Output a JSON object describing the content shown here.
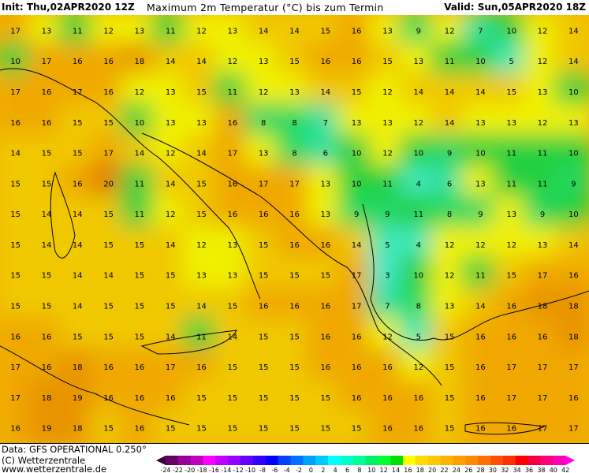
{
  "header": {
    "init": "Init: Thu,02APR2020 12Z",
    "title": "Maximum 2m Temperatur (°C) bis zum Termin",
    "valid": "Valid: Sun,05APR2020 18Z"
  },
  "footer": {
    "data_source": "Data: GFS OPERATIONAL 0.250°",
    "copyright": "(C) Wetterzentrale",
    "website": "www.wetterzentrale.de"
  },
  "map": {
    "variable": "Maximum 2m temperature",
    "unit": "°C",
    "grid_values": [
      [
        17,
        13,
        11,
        12,
        13,
        11,
        12,
        13,
        14,
        14,
        15,
        16,
        13,
        9,
        12,
        7,
        10,
        12,
        14
      ],
      [
        10,
        17,
        16,
        16,
        18,
        14,
        14,
        12,
        13,
        15,
        16,
        16,
        15,
        13,
        11,
        10,
        5,
        12,
        14
      ],
      [
        17,
        16,
        17,
        16,
        12,
        13,
        15,
        11,
        12,
        13,
        14,
        15,
        12,
        14,
        14,
        14,
        15,
        13,
        10
      ],
      [
        16,
        16,
        15,
        15,
        10,
        13,
        13,
        16,
        8,
        8,
        7,
        13,
        13,
        12,
        14,
        13,
        13,
        12,
        13
      ],
      [
        14,
        15,
        15,
        17,
        14,
        12,
        14,
        17,
        13,
        8,
        6,
        10,
        12,
        10,
        9,
        10,
        11,
        11,
        10
      ],
      [
        15,
        15,
        16,
        20,
        11,
        14,
        15,
        16,
        17,
        17,
        13,
        10,
        11,
        4,
        6,
        13,
        11,
        11,
        9
      ],
      [
        15,
        14,
        14,
        15,
        11,
        12,
        15,
        16,
        16,
        16,
        13,
        9,
        9,
        11,
        8,
        9,
        13,
        9,
        10
      ],
      [
        15,
        14,
        14,
        15,
        15,
        14,
        12,
        13,
        15,
        16,
        16,
        14,
        5,
        4,
        12,
        12,
        12,
        13,
        14
      ],
      [
        15,
        15,
        14,
        14,
        15,
        15,
        13,
        13,
        15,
        15,
        15,
        17,
        3,
        10,
        12,
        11,
        15,
        17,
        16
      ],
      [
        15,
        15,
        14,
        15,
        15,
        15,
        14,
        15,
        16,
        16,
        16,
        17,
        7,
        8,
        13,
        14,
        16,
        18,
        18
      ],
      [
        16,
        16,
        15,
        15,
        15,
        14,
        11,
        14,
        15,
        15,
        16,
        16,
        12,
        5,
        15,
        16,
        16,
        16,
        18
      ],
      [
        17,
        16,
        18,
        16,
        16,
        17,
        16,
        15,
        15,
        15,
        16,
        16,
        16,
        12,
        15,
        16,
        17,
        17,
        17
      ],
      [
        17,
        18,
        19,
        16,
        16,
        16,
        15,
        15,
        15,
        15,
        15,
        16,
        16,
        16,
        15,
        16,
        17,
        17,
        16
      ],
      [
        16,
        19,
        18,
        15,
        16,
        15,
        15,
        15,
        15,
        15,
        15,
        15,
        16,
        16,
        15,
        16,
        16,
        17,
        17
      ]
    ]
  },
  "colorbar": {
    "tick_labels": [
      "-24",
      "-22",
      "-20",
      "-18",
      "-16",
      "-14",
      "-12",
      "-10",
      "-8",
      "-6",
      "-4",
      "-2",
      "0",
      "2",
      "4",
      "6",
      "8",
      "10",
      "12",
      "14",
      "16",
      "18",
      "20",
      "22",
      "24",
      "26",
      "28",
      "30",
      "32",
      "34",
      "36",
      "38",
      "40",
      "42"
    ],
    "colors": [
      "#3c0040",
      "#640064",
      "#960096",
      "#c000c0",
      "#ff00ff",
      "#c000ff",
      "#9600ff",
      "#6400ff",
      "#3200ff",
      "#0000ff",
      "#0040ff",
      "#0070ff",
      "#00a0ff",
      "#00c8ff",
      "#00ffff",
      "#00ffc8",
      "#00ff96",
      "#00f064",
      "#00ff32",
      "#00e000",
      "#ffff00",
      "#ffdc00",
      "#ffc800",
      "#ffb400",
      "#ffa000",
      "#ff8c00",
      "#ff7000",
      "#ff5000",
      "#ff3000",
      "#ff0000",
      "#f00040",
      "#ff0078",
      "#ff00b4",
      "#ff00e6"
    ],
    "map_colors": {
      "2": "#40e8c8",
      "4": "#40e8b8",
      "6": "#30e0a0",
      "8": "#20d860",
      "10": "#20d040",
      "12": "#f0f000",
      "14": "#f0c800",
      "16": "#f0a800",
      "18": "#e89400",
      "20": "#e08000"
    }
  }
}
